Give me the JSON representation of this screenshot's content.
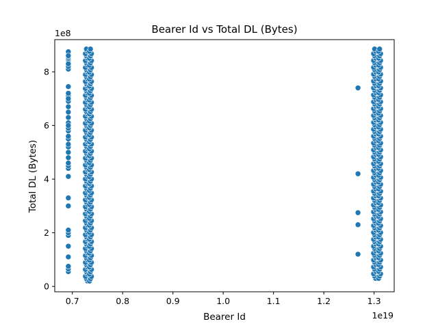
{
  "chart_data": {
    "type": "scatter",
    "title": "Bearer Id vs Total DL (Bytes)",
    "xlabel": "Bearer Id",
    "ylabel": "Total DL (Bytes)",
    "x_offset_label": "1e19",
    "y_offset_label": "1e8",
    "xlim": [
      0.665,
      1.34
    ],
    "ylim": [
      -0.2,
      9.2
    ],
    "xticks": [
      0.7,
      0.8,
      0.9,
      1.0,
      1.1,
      1.2,
      1.3
    ],
    "xtick_labels": [
      "0.7",
      "0.8",
      "0.9",
      "1.0",
      "1.1",
      "1.2",
      "1.3"
    ],
    "yticks": [
      0,
      2,
      4,
      6,
      8
    ],
    "ytick_labels": [
      "0",
      "2",
      "4",
      "6",
      "8"
    ],
    "grid": false,
    "marker_color": "#1f77b4",
    "series": [
      {
        "x": [
          0.692,
          0.692,
          0.692,
          0.692,
          0.692,
          0.692,
          0.692,
          0.692,
          0.692,
          0.692,
          0.692,
          0.692,
          0.692,
          0.692,
          0.692,
          0.692,
          0.692,
          0.692,
          0.692,
          0.692,
          0.692,
          0.692,
          0.692,
          0.692,
          0.692,
          0.692,
          0.692,
          0.692,
          0.692,
          0.692,
          0.692,
          0.692,
          0.692,
          0.692,
          0.692,
          0.692,
          0.692,
          0.692,
          0.692,
          0.692,
          0.692,
          0.692,
          0.692,
          0.692,
          0.692
        ],
        "y": [
          0.55,
          0.65,
          0.75,
          1.1,
          1.5,
          1.9,
          2.0,
          2.1,
          3.0,
          3.3,
          4.1,
          4.4,
          4.5,
          4.6,
          4.8,
          5.0,
          5.2,
          5.3,
          5.5,
          5.6,
          5.8,
          5.9,
          6.1,
          6.3,
          6.5,
          6.7,
          6.9,
          7.1,
          7.2,
          7.45,
          8.1,
          8.2,
          8.3,
          8.4,
          8.45,
          8.5,
          8.55,
          8.6,
          8.65,
          8.7,
          8.75,
          8.6,
          8.3,
          7.0,
          6.0
        ]
      },
      {
        "x": [
          1.268,
          1.268,
          1.268,
          1.268,
          1.268,
          1.268
        ],
        "y": [
          1.2,
          2.3,
          2.75,
          4.2,
          7.4,
          7.4
        ]
      }
    ],
    "dense_columns": [
      {
        "x_values": [
          0.728,
          0.736
        ],
        "y_min": 0.2,
        "y_max": 8.85
      },
      {
        "x_values": [
          1.301,
          1.311
        ],
        "y_min": 0.3,
        "y_max": 8.85
      }
    ]
  }
}
